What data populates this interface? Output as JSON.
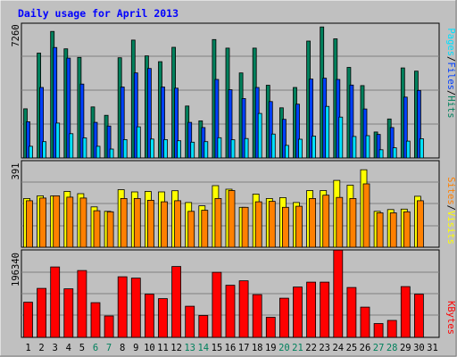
{
  "title": "Daily usage for April 2013",
  "colors": {
    "background": "#C0C0C0",
    "plot": "#C0C0C0",
    "title": "#0000FF",
    "hits": "#00805C",
    "files": "#0040FF",
    "pages": "#00E0FF",
    "visits": "#FFFF00",
    "sites": "#FF8000",
    "kbytes": "#FF0000",
    "weekend_label": "#00805C",
    "weekday_label": "#000000",
    "grid": "#808080"
  },
  "axis_labels": {
    "top_max": "7260",
    "mid_max": "391",
    "bottom_max": "196340"
  },
  "legend": {
    "pages": "Pages",
    "files": "Files",
    "hits": "Hits",
    "sites": "Sites",
    "visits": "Visits",
    "kbytes": "KBytes",
    "sep": "/"
  },
  "chart_data": {
    "type": "bar",
    "title": "Daily usage for April 2013",
    "categories": [
      "1",
      "2",
      "3",
      "4",
      "5",
      "6",
      "7",
      "8",
      "9",
      "10",
      "11",
      "12",
      "13",
      "14",
      "15",
      "16",
      "17",
      "18",
      "19",
      "20",
      "21",
      "22",
      "23",
      "24",
      "25",
      "26",
      "27",
      "28",
      "29",
      "30",
      "31"
    ],
    "weekend_days": [
      "6",
      "7",
      "13",
      "14",
      "20",
      "21",
      "27",
      "28"
    ],
    "panels": [
      {
        "name": "hits-files-pages",
        "ylim": [
          0,
          7260
        ],
        "series": [
          {
            "name": "Hits",
            "color": "#00805C",
            "values": [
              2650,
              5650,
              6820,
              5880,
              5420,
              2750,
              2300,
              5400,
              6350,
              5500,
              5190,
              5960,
              2800,
              2000,
              6380,
              5920,
              4580,
              5920,
              3920,
              2700,
              3800,
              6300,
              7060,
              6420,
              4880,
              3900,
              1400,
              2100,
              4850,
              4680,
              0
            ]
          },
          {
            "name": "Files",
            "color": "#0040FF",
            "values": [
              1950,
              3800,
              5950,
              5380,
              3980,
              1920,
              1720,
              3820,
              4580,
              4820,
              3820,
              3760,
              1920,
              1640,
              4230,
              3680,
              3200,
              3800,
              3040,
              2080,
              2900,
              4250,
              4300,
              4230,
              3930,
              2640,
              1270,
              1640,
              3280,
              3640,
              0
            ]
          },
          {
            "name": "Pages",
            "color": "#00E0FF",
            "values": [
              630,
              880,
              1880,
              1310,
              1080,
              630,
              480,
              990,
              1680,
              1020,
              990,
              930,
              850,
              880,
              1090,
              980,
              1050,
              2400,
              1290,
              680,
              1010,
              1180,
              2780,
              2200,
              1160,
              1200,
              440,
              550,
              910,
              1040,
              0
            ]
          }
        ]
      },
      {
        "name": "visits-sites",
        "ylim": [
          0,
          391
        ],
        "series": [
          {
            "name": "Visits",
            "color": "#FFFF00",
            "values": [
              220,
              232,
              232,
              252,
              242,
              182,
              162,
              260,
              250,
              252,
              250,
              255,
              202,
              187,
              278,
              262,
              180,
              240,
              220,
              224,
              202,
              256,
              256,
              302,
              280,
              350,
              162,
              170,
              172,
              230,
              0
            ]
          },
          {
            "name": "Sites",
            "color": "#FF8000",
            "values": [
              210,
              222,
              232,
              226,
              222,
              165,
              160,
              220,
              220,
              212,
              205,
              210,
              162,
              167,
              220,
              256,
              180,
              205,
              207,
              180,
              185,
              220,
              235,
              225,
              220,
              286,
              155,
              155,
              160,
              210,
              0
            ]
          }
        ]
      },
      {
        "name": "kbytes",
        "ylim": [
          0,
          196340
        ],
        "series": [
          {
            "name": "KBytes",
            "color": "#FF0000",
            "values": [
              79000,
              110000,
              158000,
              109000,
              150000,
              78000,
              48000,
              136000,
              133000,
              97000,
              87000,
              159000,
              70000,
              49000,
              146000,
              117000,
              127000,
              96000,
              45000,
              88000,
              113000,
              124000,
              124000,
              196000,
              112000,
              68000,
              31000,
              38000,
              114000,
              97000,
              0
            ]
          }
        ]
      }
    ]
  }
}
